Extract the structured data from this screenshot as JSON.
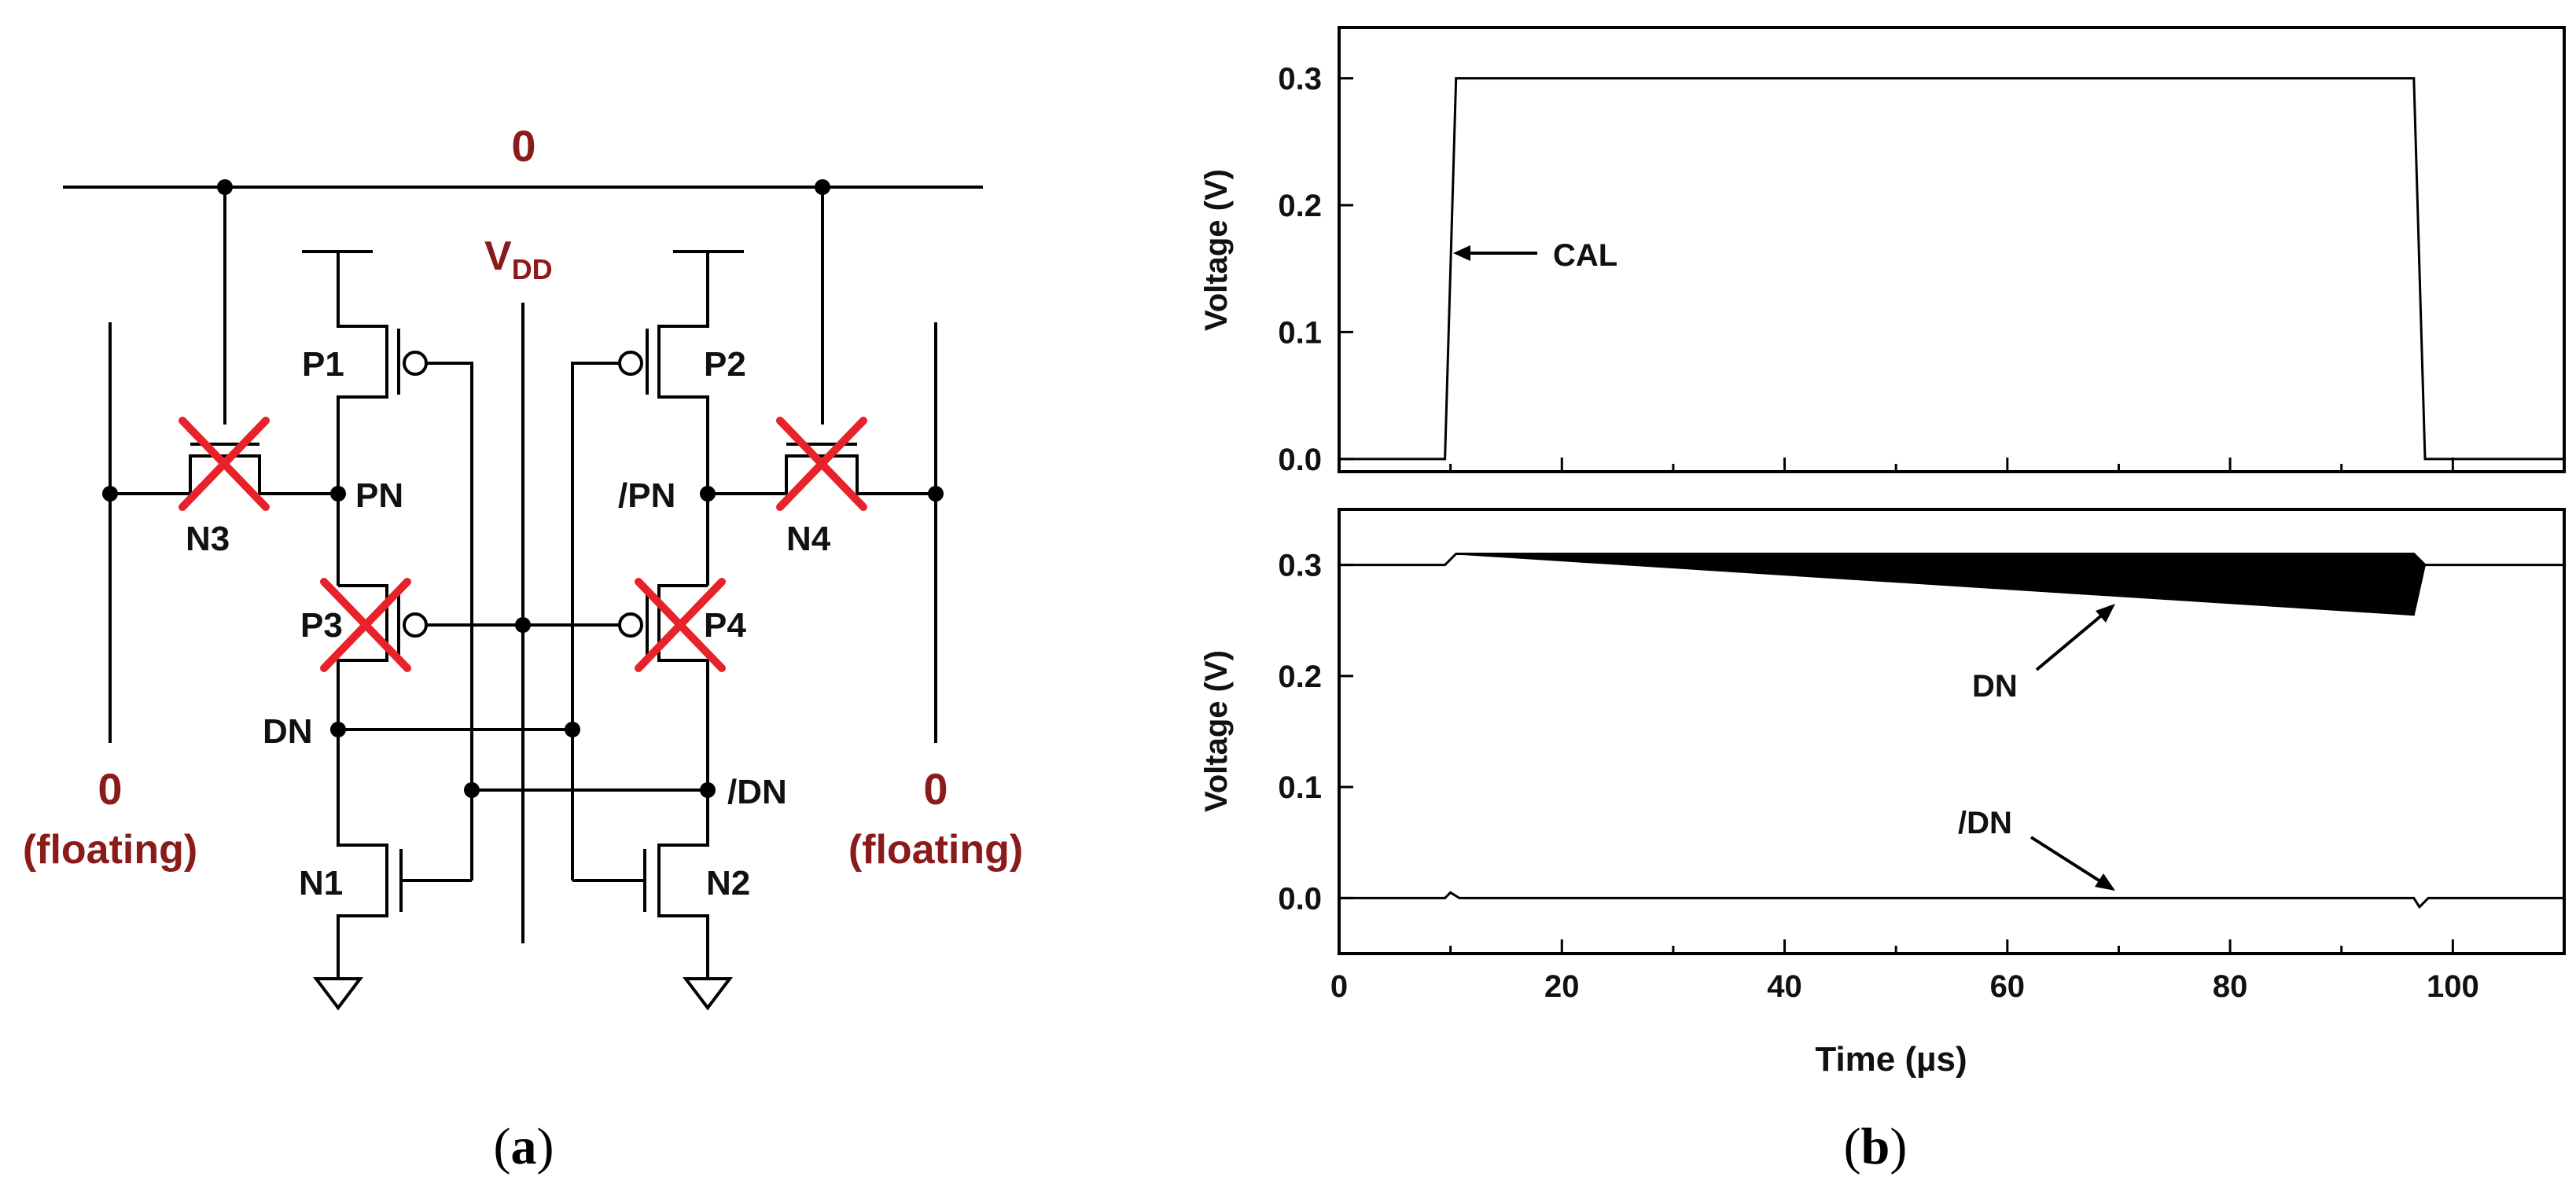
{
  "colors": {
    "line": "#000000",
    "label_red": "#8b1a1a",
    "cross": "#e8222a"
  },
  "circuit": {
    "top_rail_label": "0",
    "vdd_main": "V",
    "vdd_sub": "DD",
    "left_bitline": {
      "value": "0",
      "note": "(floating)"
    },
    "right_bitline": {
      "value": "0",
      "note": "(floating)"
    },
    "transistors": {
      "p1": "P1",
      "p2": "P2",
      "p3": "P3",
      "p4": "P4",
      "n1": "N1",
      "n2": "N2",
      "n3": "N3",
      "n4": "N4"
    },
    "nodes": {
      "pn": "PN",
      "pn_bar": "/PN",
      "dn": "DN",
      "dn_bar": "/DN"
    },
    "crossed_out": [
      "N3",
      "N4",
      "P3",
      "P4"
    ]
  },
  "captions": {
    "a": "(a)",
    "a_letter": "a",
    "b": "(b)",
    "b_letter": "b"
  },
  "chart_data": [
    {
      "type": "line",
      "title": "",
      "xlabel": "Time (µs)",
      "ylabel": "Voltage (V)",
      "xlim": [
        0,
        110
      ],
      "ylim": [
        -0.01,
        0.34
      ],
      "yticks": [
        "0.0",
        "0.1",
        "0.2",
        "0.3"
      ],
      "series": [
        {
          "name": "CAL",
          "points": [
            [
              0,
              0
            ],
            [
              9.5,
              0
            ],
            [
              10.5,
              0.3
            ],
            [
              96.5,
              0.3
            ],
            [
              97.5,
              0
            ],
            [
              110,
              0
            ]
          ]
        }
      ],
      "annotations": [
        {
          "text": "CAL",
          "x": 11,
          "y": 0.15
        }
      ]
    },
    {
      "type": "line",
      "title": "",
      "xlabel": "Time (µs)",
      "ylabel": "Voltage (V)",
      "xlim": [
        0,
        110
      ],
      "ylim": [
        -0.05,
        0.35
      ],
      "xticks": [
        "0",
        "20",
        "40",
        "60",
        "80",
        "100"
      ],
      "yticks": [
        "0.0",
        "0.1",
        "0.2",
        "0.3"
      ],
      "series": [
        {
          "name": "DN (upper envelope)",
          "points": [
            [
              0,
              0.3
            ],
            [
              9.5,
              0.3
            ],
            [
              10.5,
              0.31
            ],
            [
              96.5,
              0.31
            ],
            [
              97.5,
              0.3
            ],
            [
              110,
              0.3
            ]
          ]
        },
        {
          "name": "DN (lower envelope)",
          "points": [
            [
              10.5,
              0.31
            ],
            [
              96.5,
              0.255
            ],
            [
              97.5,
              0.3
            ]
          ]
        },
        {
          "name": "/DN",
          "points": [
            [
              0,
              0
            ],
            [
              9.5,
              0
            ],
            [
              10,
              0.005
            ],
            [
              10.8,
              0
            ],
            [
              96.5,
              0
            ],
            [
              97,
              -0.008
            ],
            [
              97.8,
              0
            ],
            [
              110,
              0
            ]
          ]
        }
      ],
      "annotations": [
        {
          "text": "DN",
          "x": 70,
          "y": 0.27
        },
        {
          "text": "/DN",
          "x": 70,
          "y": 0.0
        }
      ]
    }
  ]
}
